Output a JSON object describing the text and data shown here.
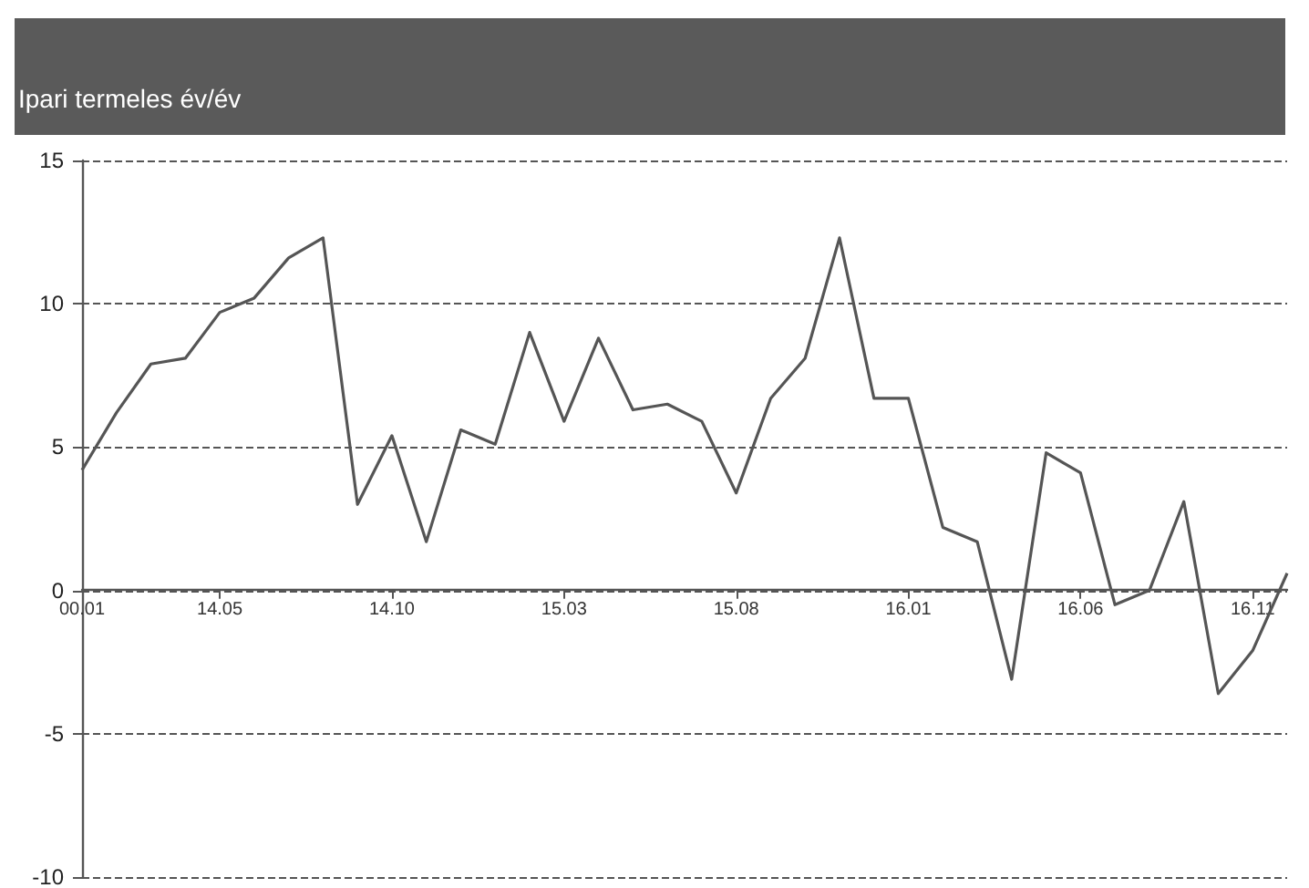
{
  "chart_data": {
    "type": "line",
    "title": "Ipari termeles év/év",
    "categories": [
      "00.01",
      null,
      null,
      null,
      "14.05",
      null,
      null,
      null,
      null,
      "14.10",
      null,
      null,
      null,
      null,
      "15.03",
      null,
      null,
      null,
      null,
      "15.08",
      null,
      null,
      null,
      null,
      "16.01",
      null,
      null,
      null,
      null,
      "16.06",
      null,
      null,
      null,
      null,
      "16.11",
      null
    ],
    "series": [
      {
        "color": "#555555",
        "values": [
          4.2,
          6.2,
          7.9,
          8.1,
          9.7,
          10.2,
          11.6,
          12.3,
          3.0,
          5.4,
          1.7,
          5.6,
          5.1,
          9.0,
          5.9,
          8.8,
          6.3,
          6.5,
          5.9,
          3.4,
          6.7,
          8.1,
          12.3,
          6.7,
          6.7,
          2.2,
          1.7,
          -3.1,
          4.8,
          4.1,
          -0.5,
          0.0,
          3.1,
          -3.6,
          -2.1,
          0.6
        ]
      }
    ],
    "ylim": [
      -10,
      15
    ],
    "yticks": [
      -10,
      -5,
      0,
      5,
      10,
      15
    ],
    "grid": "y",
    "marker": "none",
    "line_style": "solid"
  }
}
